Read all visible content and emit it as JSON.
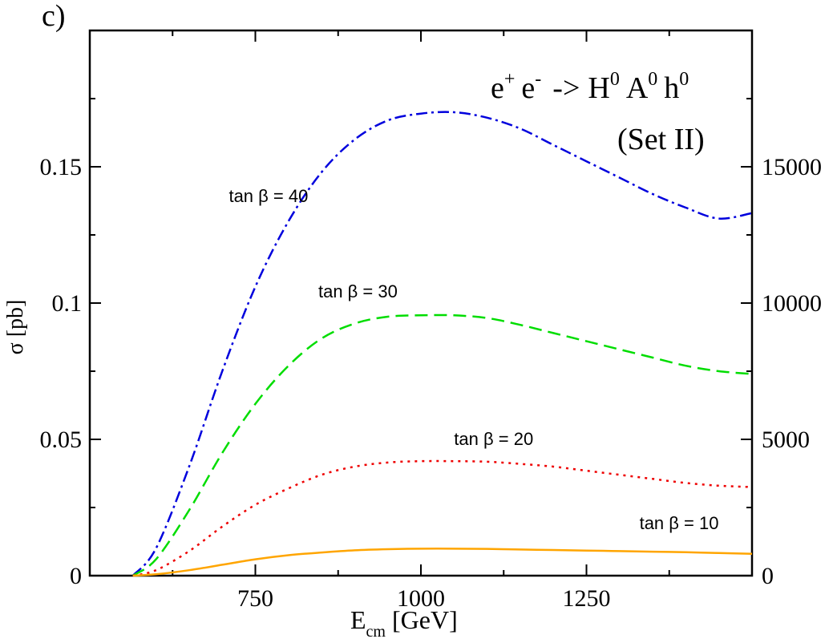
{
  "chart_data": {
    "type": "line",
    "panel_label": "c)",
    "title": "e⁺ e⁻ -> H⁰ A⁰ h⁰",
    "title_parts": {
      "e1": "e",
      "e1_sup": "+",
      "e2": "e",
      "e2_sup": "-",
      "arrow": "->",
      "H": "H",
      "H_sup": "0",
      "A": "A",
      "A_sup": "0",
      "h": "h",
      "h_sup": "0"
    },
    "subtitle": "(Set II)",
    "xlabel_main": "E",
    "xlabel_sub": "cm",
    "xlabel_unit": "[GeV]",
    "xlabel": "E_cm [GeV]",
    "ylabel": "σ [pb]",
    "xlim": [
      500,
      1500
    ],
    "ylim": [
      0,
      0.2
    ],
    "xticks": [
      750,
      1000,
      1250
    ],
    "xtick_labels": [
      "750",
      "1000",
      "1250"
    ],
    "yticks": [
      0,
      0.05,
      0.1,
      0.15
    ],
    "ytick_labels": [
      "0",
      "0.05",
      "0.1",
      "0.15"
    ],
    "y2ticks": [
      0,
      0.05,
      0.1,
      0.15
    ],
    "y2tick_labels": [
      "0",
      "5000",
      "10000",
      "15000"
    ],
    "grid": false,
    "series": [
      {
        "name": "tan β = 40",
        "color": "#0000dd",
        "dash": "dashdot",
        "x": [
          565,
          600,
          650,
          700,
          750,
          800,
          850,
          900,
          950,
          1000,
          1050,
          1100,
          1150,
          1200,
          1250,
          1300,
          1350,
          1400,
          1450,
          1500
        ],
        "y": [
          0.0,
          0.01,
          0.04,
          0.075,
          0.106,
          0.13,
          0.148,
          0.16,
          0.167,
          0.1695,
          0.17,
          0.168,
          0.164,
          0.158,
          0.152,
          0.146,
          0.14,
          0.135,
          0.131,
          0.133
        ]
      },
      {
        "name": "tan β = 30",
        "color": "#00dd00",
        "dash": "dashed",
        "x": [
          565,
          600,
          650,
          700,
          750,
          800,
          850,
          900,
          950,
          1000,
          1050,
          1100,
          1150,
          1200,
          1250,
          1300,
          1350,
          1400,
          1450,
          1500
        ],
        "y": [
          0.0,
          0.006,
          0.024,
          0.045,
          0.063,
          0.077,
          0.087,
          0.0925,
          0.095,
          0.0955,
          0.0955,
          0.0945,
          0.092,
          0.089,
          0.086,
          0.083,
          0.08,
          0.077,
          0.075,
          0.074
        ]
      },
      {
        "name": "tan β = 20",
        "color": "#ee0000",
        "dash": "dotted",
        "x": [
          565,
          600,
          650,
          700,
          750,
          800,
          850,
          900,
          950,
          1000,
          1050,
          1100,
          1150,
          1200,
          1250,
          1300,
          1350,
          1400,
          1450,
          1500
        ],
        "y": [
          0.0,
          0.002,
          0.009,
          0.018,
          0.026,
          0.032,
          0.037,
          0.04,
          0.0415,
          0.042,
          0.042,
          0.0418,
          0.041,
          0.04,
          0.0385,
          0.037,
          0.0355,
          0.034,
          0.033,
          0.0325
        ]
      },
      {
        "name": "tan β = 10",
        "color": "#ffa500",
        "dash": "solid",
        "x": [
          565,
          600,
          650,
          700,
          750,
          800,
          850,
          900,
          950,
          1000,
          1050,
          1100,
          1150,
          1200,
          1250,
          1300,
          1350,
          1400,
          1450,
          1500
        ],
        "y": [
          0.0,
          0.0005,
          0.002,
          0.004,
          0.006,
          0.0075,
          0.0085,
          0.0093,
          0.0097,
          0.0099,
          0.0099,
          0.0098,
          0.0096,
          0.0094,
          0.0092,
          0.009,
          0.0088,
          0.0086,
          0.0083,
          0.008
        ]
      }
    ],
    "annotations": [
      {
        "text": "tan β = 40",
        "x": 710,
        "y": 0.137
      },
      {
        "text": "tan β = 30",
        "x": 845,
        "y": 0.102
      },
      {
        "text": "tan β = 20",
        "x": 1050,
        "y": 0.048
      },
      {
        "text": "tan β = 10",
        "x": 1330,
        "y": 0.017
      }
    ]
  }
}
